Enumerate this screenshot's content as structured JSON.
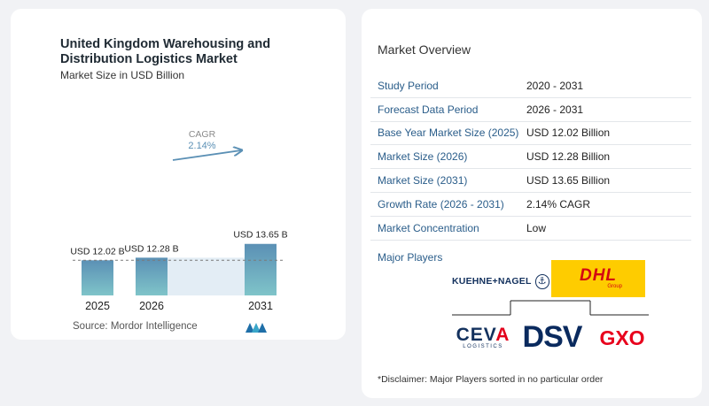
{
  "chart_data": {
    "type": "bar",
    "title": "United Kingdom Warehousing and Distribution Logistics Market",
    "subtitle": "Market Size in USD Billion",
    "categories": [
      "2025",
      "2026",
      "2031"
    ],
    "values": [
      12.02,
      12.28,
      13.65
    ],
    "value_labels": [
      "USD 12.02 B",
      "USD 12.28 B",
      "USD 13.65 B"
    ],
    "cagr_label": "CAGR",
    "cagr_value": "2.14%",
    "bar_color": "#5b90b5",
    "bar_color_bottom": "#7fc4c9",
    "band_color": "#e3edf5",
    "grid": false,
    "legend": "none"
  },
  "source": "Source:  Mordor Intelligence",
  "overview": {
    "title": "Market Overview",
    "rows": [
      {
        "label": "Study Period",
        "value": "2020 - 2031"
      },
      {
        "label": "Forecast Data Period",
        "value": "2026 - 2031"
      },
      {
        "label": "Base Year Market Size (2025)",
        "value": "USD 12.02 Billion"
      },
      {
        "label": "Market Size (2026)",
        "value": "USD 12.28 Billion"
      },
      {
        "label": "Market Size (2031)",
        "value": "USD 13.65 Billion"
      },
      {
        "label": "Growth Rate (2026 - 2031)",
        "value": "2.14% CAGR"
      },
      {
        "label": "Market Concentration",
        "value": "Low"
      }
    ]
  },
  "major_players": {
    "title": "Major Players",
    "logos": {
      "kuehne_nagel": "KUEHNE+NAGEL",
      "kn_anchor": "⚓",
      "dhl": "DHL",
      "dhl_sub": "Group",
      "ceva_c": "CEV",
      "ceva_a": "A",
      "ceva_sub": "LOGISTICS",
      "dsv": "DSV",
      "gxo": "GXO"
    }
  },
  "disclaimer": "*Disclaimer: Major Players sorted in no particular order"
}
